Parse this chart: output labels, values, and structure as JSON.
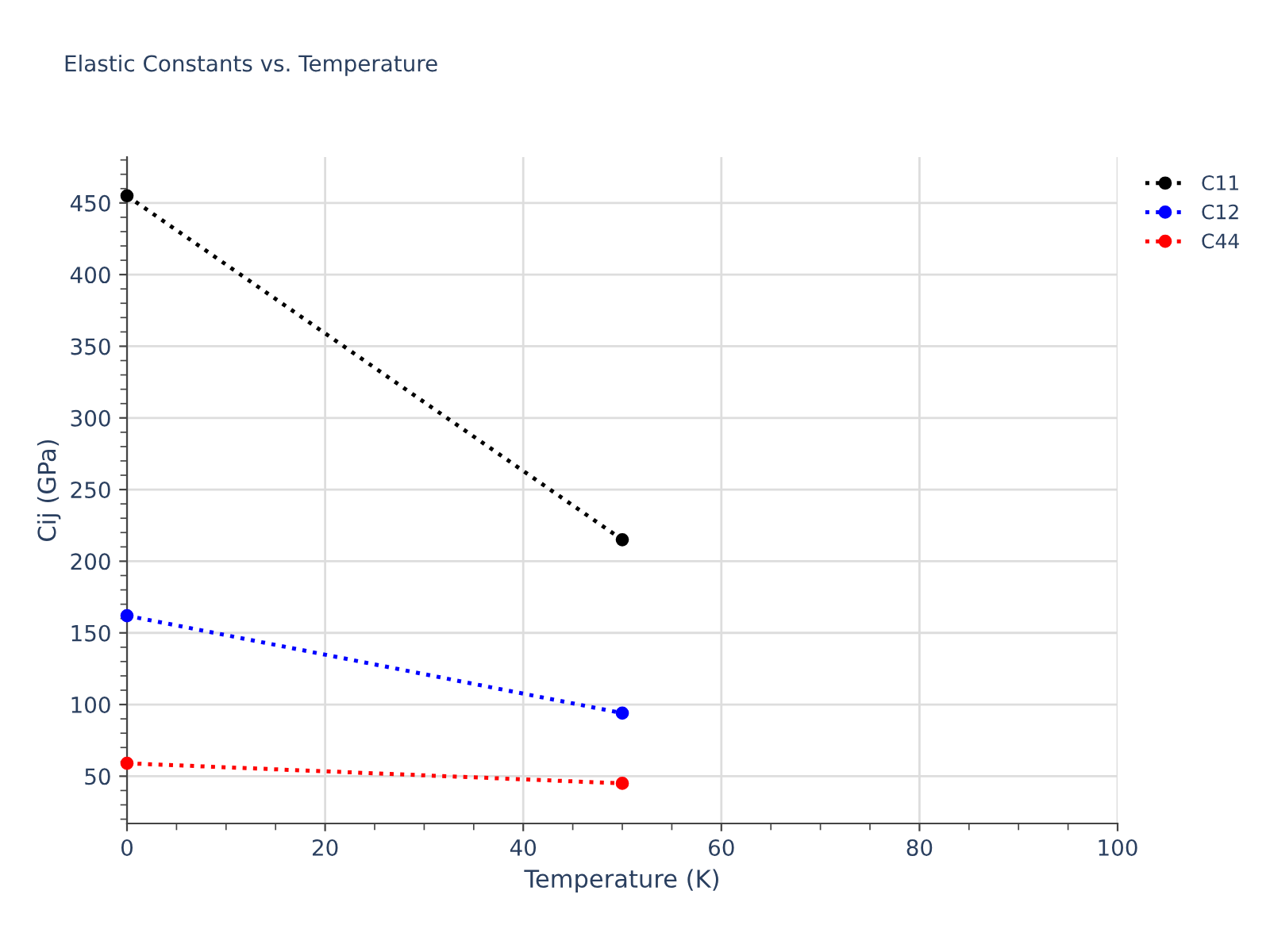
{
  "chart_data": {
    "type": "line",
    "title": "Elastic Constants vs. Temperature",
    "xlabel": "Temperature (K)",
    "ylabel": "Cij (GPa)",
    "x": [
      0,
      50
    ],
    "series": [
      {
        "name": "C11",
        "color": "#000000",
        "values": [
          455,
          215
        ]
      },
      {
        "name": "C12",
        "color": "#0000ff",
        "values": [
          162,
          94
        ]
      },
      {
        "name": "C44",
        "color": "#ff0000",
        "values": [
          59,
          45
        ]
      }
    ],
    "xlim": [
      0,
      100
    ],
    "xticks": [
      0,
      20,
      40,
      60,
      80,
      100
    ],
    "ylim": [
      17,
      482
    ],
    "yticks": [
      50,
      100,
      150,
      200,
      250,
      300,
      350,
      400,
      450
    ],
    "grid": true,
    "legend": "top right",
    "marker": "circle",
    "line_style": "dotted"
  }
}
